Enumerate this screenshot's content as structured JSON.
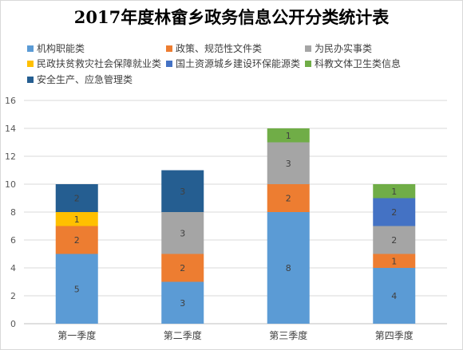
{
  "chart_data": {
    "type": "bar",
    "stacked": true,
    "title": "2017年度林畲乡政务信息公开分类统计表",
    "xlabel": "",
    "ylabel": "",
    "ylim": [
      0,
      16
    ],
    "yticks": [
      0,
      2,
      4,
      6,
      8,
      10,
      12,
      14,
      16
    ],
    "grid": true,
    "legend_position": "top",
    "categories": [
      "第一季度",
      "第二季度",
      "第三季度",
      "第四季度"
    ],
    "series": [
      {
        "name": "机构职能类",
        "color": "#5b9bd5",
        "values": [
          5,
          3,
          8,
          4
        ]
      },
      {
        "name": "政策、规范性文件类",
        "color": "#ed7d31",
        "values": [
          2,
          2,
          2,
          1
        ]
      },
      {
        "name": "为民办实事类",
        "color": "#a5a5a5",
        "values": [
          0,
          3,
          3,
          2
        ]
      },
      {
        "name": "民政扶贫救灾社会保障就业类",
        "color": "#ffc000",
        "values": [
          1,
          0,
          0,
          0
        ]
      },
      {
        "name": "国土资源城乡建设环保能源类",
        "color": "#4472c4",
        "values": [
          0,
          0,
          0,
          2
        ]
      },
      {
        "name": "科教文体卫生类信息",
        "color": "#70ad47",
        "values": [
          0,
          0,
          1,
          1
        ]
      },
      {
        "name": "安全生产、应急管理类",
        "color": "#255e91",
        "values": [
          2,
          3,
          0,
          0
        ]
      }
    ]
  }
}
